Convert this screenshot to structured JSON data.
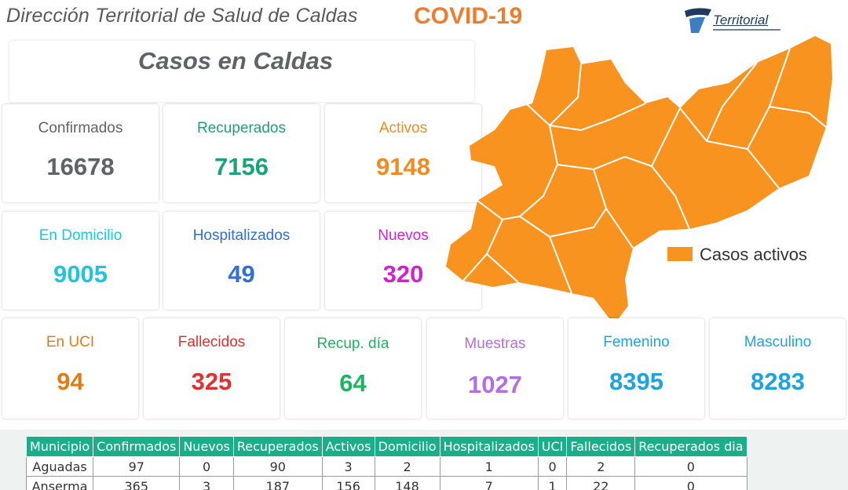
{
  "header": {
    "title": "Dirección Territorial de Salud de Caldas",
    "badge": "COVID-19",
    "logo_text": "Territorial"
  },
  "section_title": "Casos en Caldas",
  "stats": {
    "confirmados": {
      "label": "Confirmados",
      "value": "16678",
      "color": "#5f6368"
    },
    "recuperados": {
      "label": "Recuperados",
      "value": "7156",
      "color": "#1aa37a"
    },
    "activos": {
      "label": "Activos",
      "value": "9148",
      "color": "#f08a24"
    },
    "domicilio": {
      "label": "En Domicilio",
      "value": "9005",
      "color": "#1fc4e0"
    },
    "hospitalizados": {
      "label": "Hospitalizados",
      "value": "49",
      "color": "#2f6fd6"
    },
    "nuevos": {
      "label": "Nuevos",
      "value": "320",
      "color": "#d61fd0"
    },
    "uci": {
      "label": "En UCI",
      "value": "94",
      "color": "#e07b18"
    },
    "fallecidos": {
      "label": "Fallecidos",
      "value": "325",
      "color": "#e03030"
    },
    "recup_dia": {
      "label": "Recup. día",
      "value": "64",
      "color": "#1fb35f"
    },
    "muestras": {
      "label": "Muestras",
      "value": "1027",
      "color": "#b56ee0"
    },
    "femenino": {
      "label": "Femenino",
      "value": "8395",
      "color": "#1fa3e0"
    },
    "masculino": {
      "label": "Masculino",
      "value": "8283",
      "color": "#1fa3e0"
    }
  },
  "map": {
    "legend_label": "Casos activos",
    "fill_color": "#f7931e"
  },
  "table": {
    "headers": [
      "Municipio",
      "Confirmados",
      "Nuevos",
      "Recuperados",
      "Activos",
      "Domicilio",
      "Hospitalizados",
      "UCI",
      "Fallecidos",
      "Recuperados dia"
    ],
    "rows": [
      [
        "Aguadas",
        "97",
        "0",
        "90",
        "3",
        "2",
        "1",
        "0",
        "2",
        "0"
      ],
      [
        "Anserma",
        "365",
        "3",
        "187",
        "156",
        "148",
        "7",
        "1",
        "22",
        "0"
      ]
    ]
  }
}
